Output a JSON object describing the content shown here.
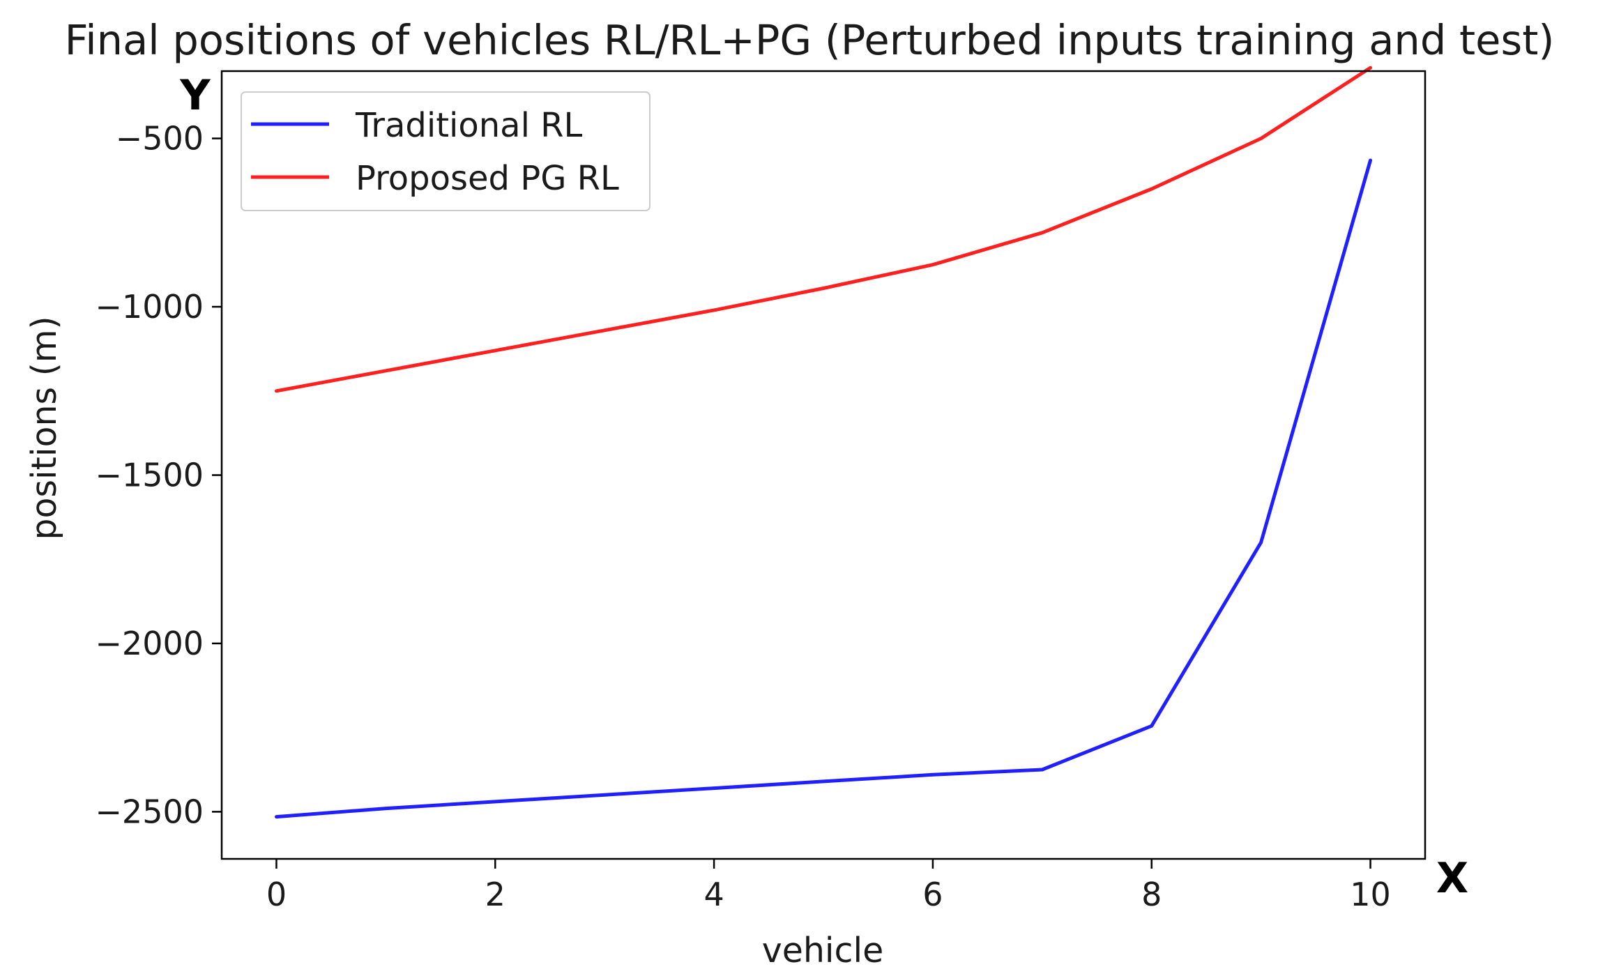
{
  "chart_data": {
    "type": "line",
    "title": "Final positions of vehicles RL/RL+PG (Perturbed inputs training and test)",
    "xlabel": "vehicle",
    "ylabel": "positions   (m)",
    "x_axis_marker": "X",
    "y_axis_marker": "Y",
    "xlim": [
      -0.5,
      10.5
    ],
    "ylim": [
      -2640,
      -300
    ],
    "xticks": [
      0,
      2,
      4,
      6,
      8,
      10
    ],
    "yticks": [
      -2500,
      -2000,
      -1500,
      -1000,
      -500
    ],
    "ytick_labels": [
      "−2500",
      "−2000",
      "−1500",
      "−1000",
      "−500"
    ],
    "grid": false,
    "legend_position": "top-left",
    "x": [
      0,
      1,
      2,
      3,
      4,
      5,
      6,
      7,
      8,
      9,
      10
    ],
    "series": [
      {
        "name": "Traditional RL",
        "color": "#1f1fff",
        "values": [
          -2515,
          -2490,
          -2470,
          -2450,
          -2430,
          -2410,
          -2390,
          -2375,
          -2245,
          -1700,
          -565
        ]
      },
      {
        "name": "Proposed PG RL",
        "color": "#ff1f1f",
        "values": [
          -1250,
          -1190,
          -1130,
          -1070,
          -1010,
          -945,
          -875,
          -780,
          -650,
          -500,
          -290
        ]
      }
    ]
  }
}
